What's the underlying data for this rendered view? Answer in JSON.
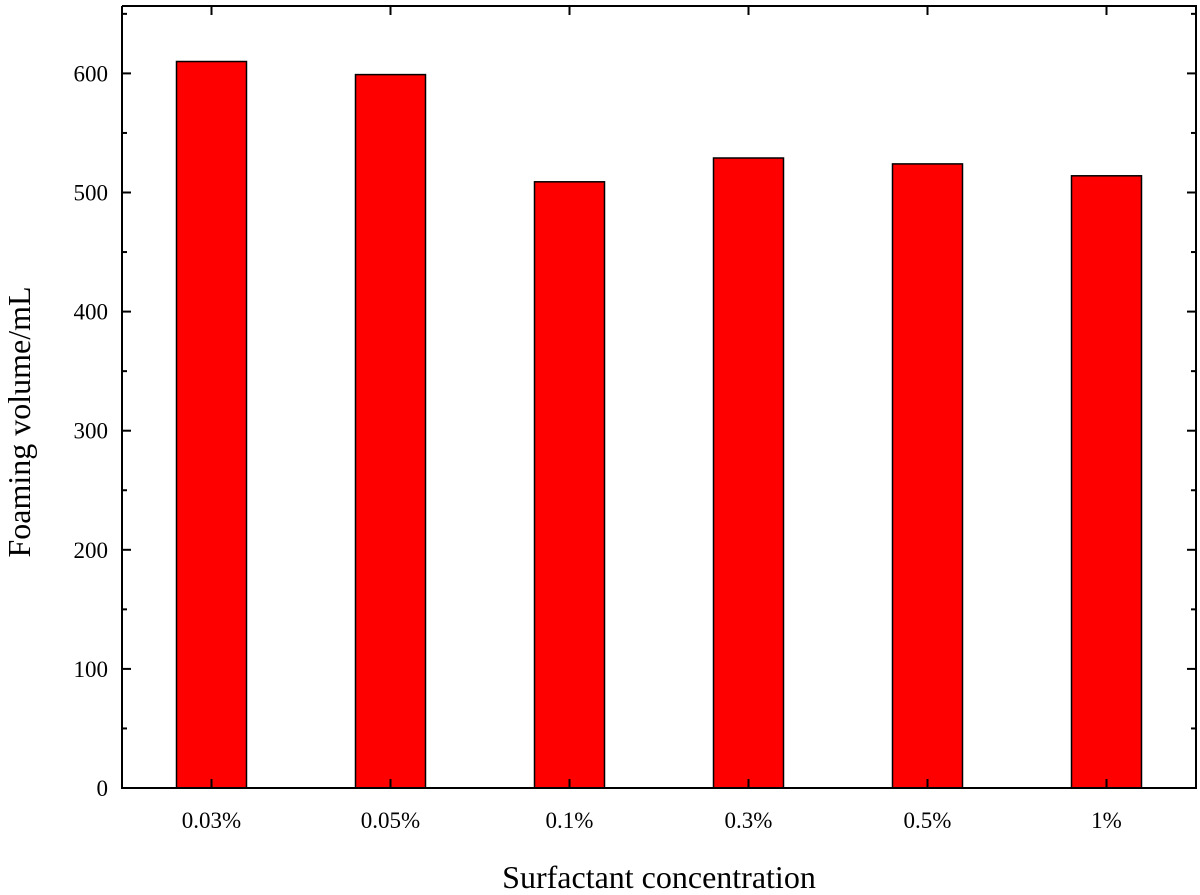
{
  "chart_data": {
    "type": "bar",
    "categories": [
      "0.03%",
      "0.05%",
      "0.1%",
      "0.3%",
      "0.5%",
      "1%"
    ],
    "values": [
      610,
      599,
      509,
      529,
      524,
      514
    ],
    "xlabel": "Surfactant concentration",
    "ylabel": "Foaming volume/mL",
    "ylim": [
      0,
      660
    ],
    "yticks": [
      0,
      100,
      200,
      300,
      400,
      500,
      600
    ],
    "bar_color": "#ff0000",
    "grid": false,
    "legend": "none"
  }
}
